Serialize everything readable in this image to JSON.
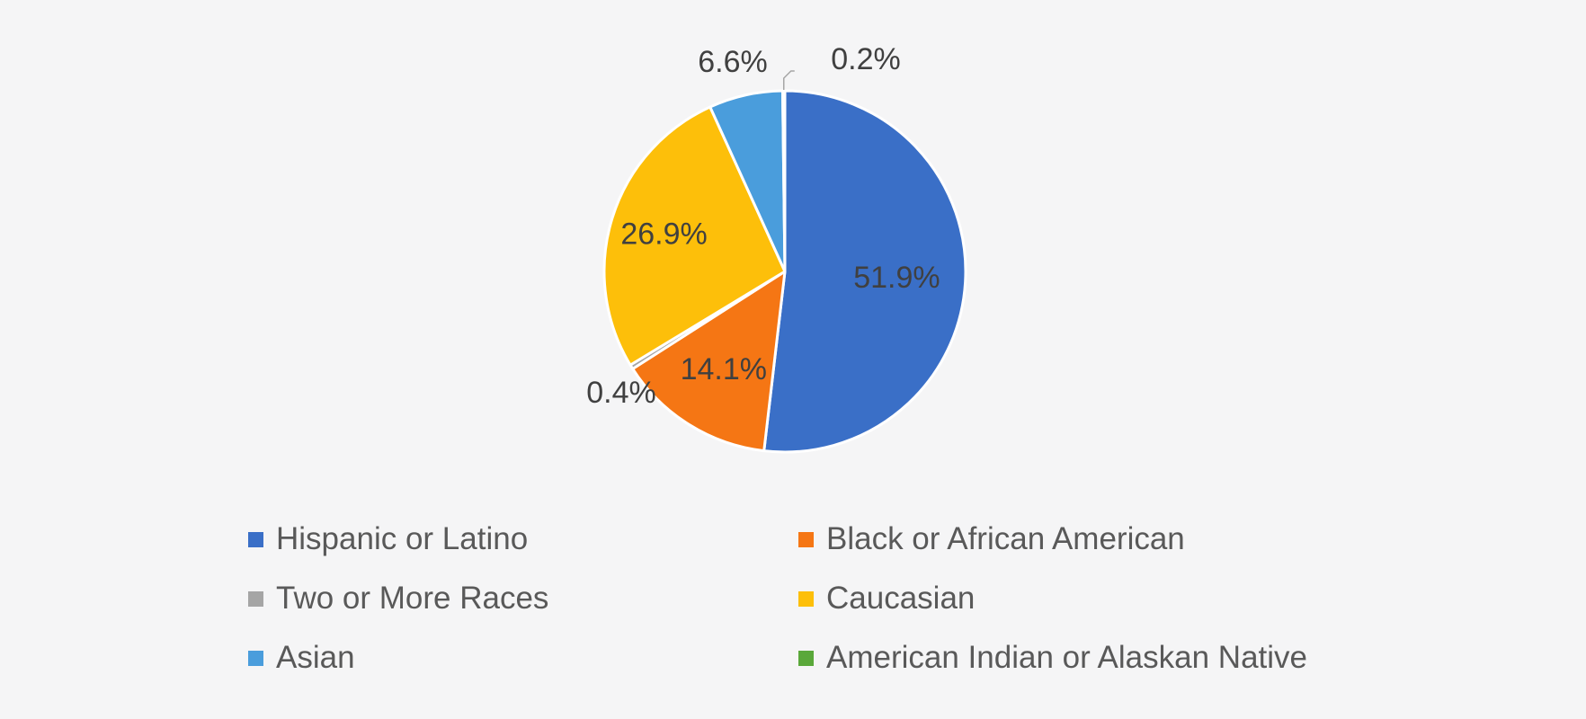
{
  "chart_data": {
    "type": "pie",
    "title": "",
    "categories": [
      "Hispanic or Latino",
      "Black or African American",
      "Two or More Races",
      "Caucasian",
      "Asian",
      "American Indian or Alaskan Native"
    ],
    "values": [
      51.9,
      14.1,
      0.4,
      26.9,
      6.6,
      0.2
    ],
    "value_labels": [
      "51.9%",
      "14.1%",
      "0.4%",
      "26.9%",
      "6.6%",
      "0.2%"
    ],
    "colors": [
      "#3a6fc7",
      "#f57614",
      "#a5a5a5",
      "#fdbf0a",
      "#4a9ddc",
      "#5aa83a"
    ],
    "start_angle": "12 o'clock",
    "direction": "clockwise",
    "legend_position": "bottom",
    "legend_columns": 2
  }
}
